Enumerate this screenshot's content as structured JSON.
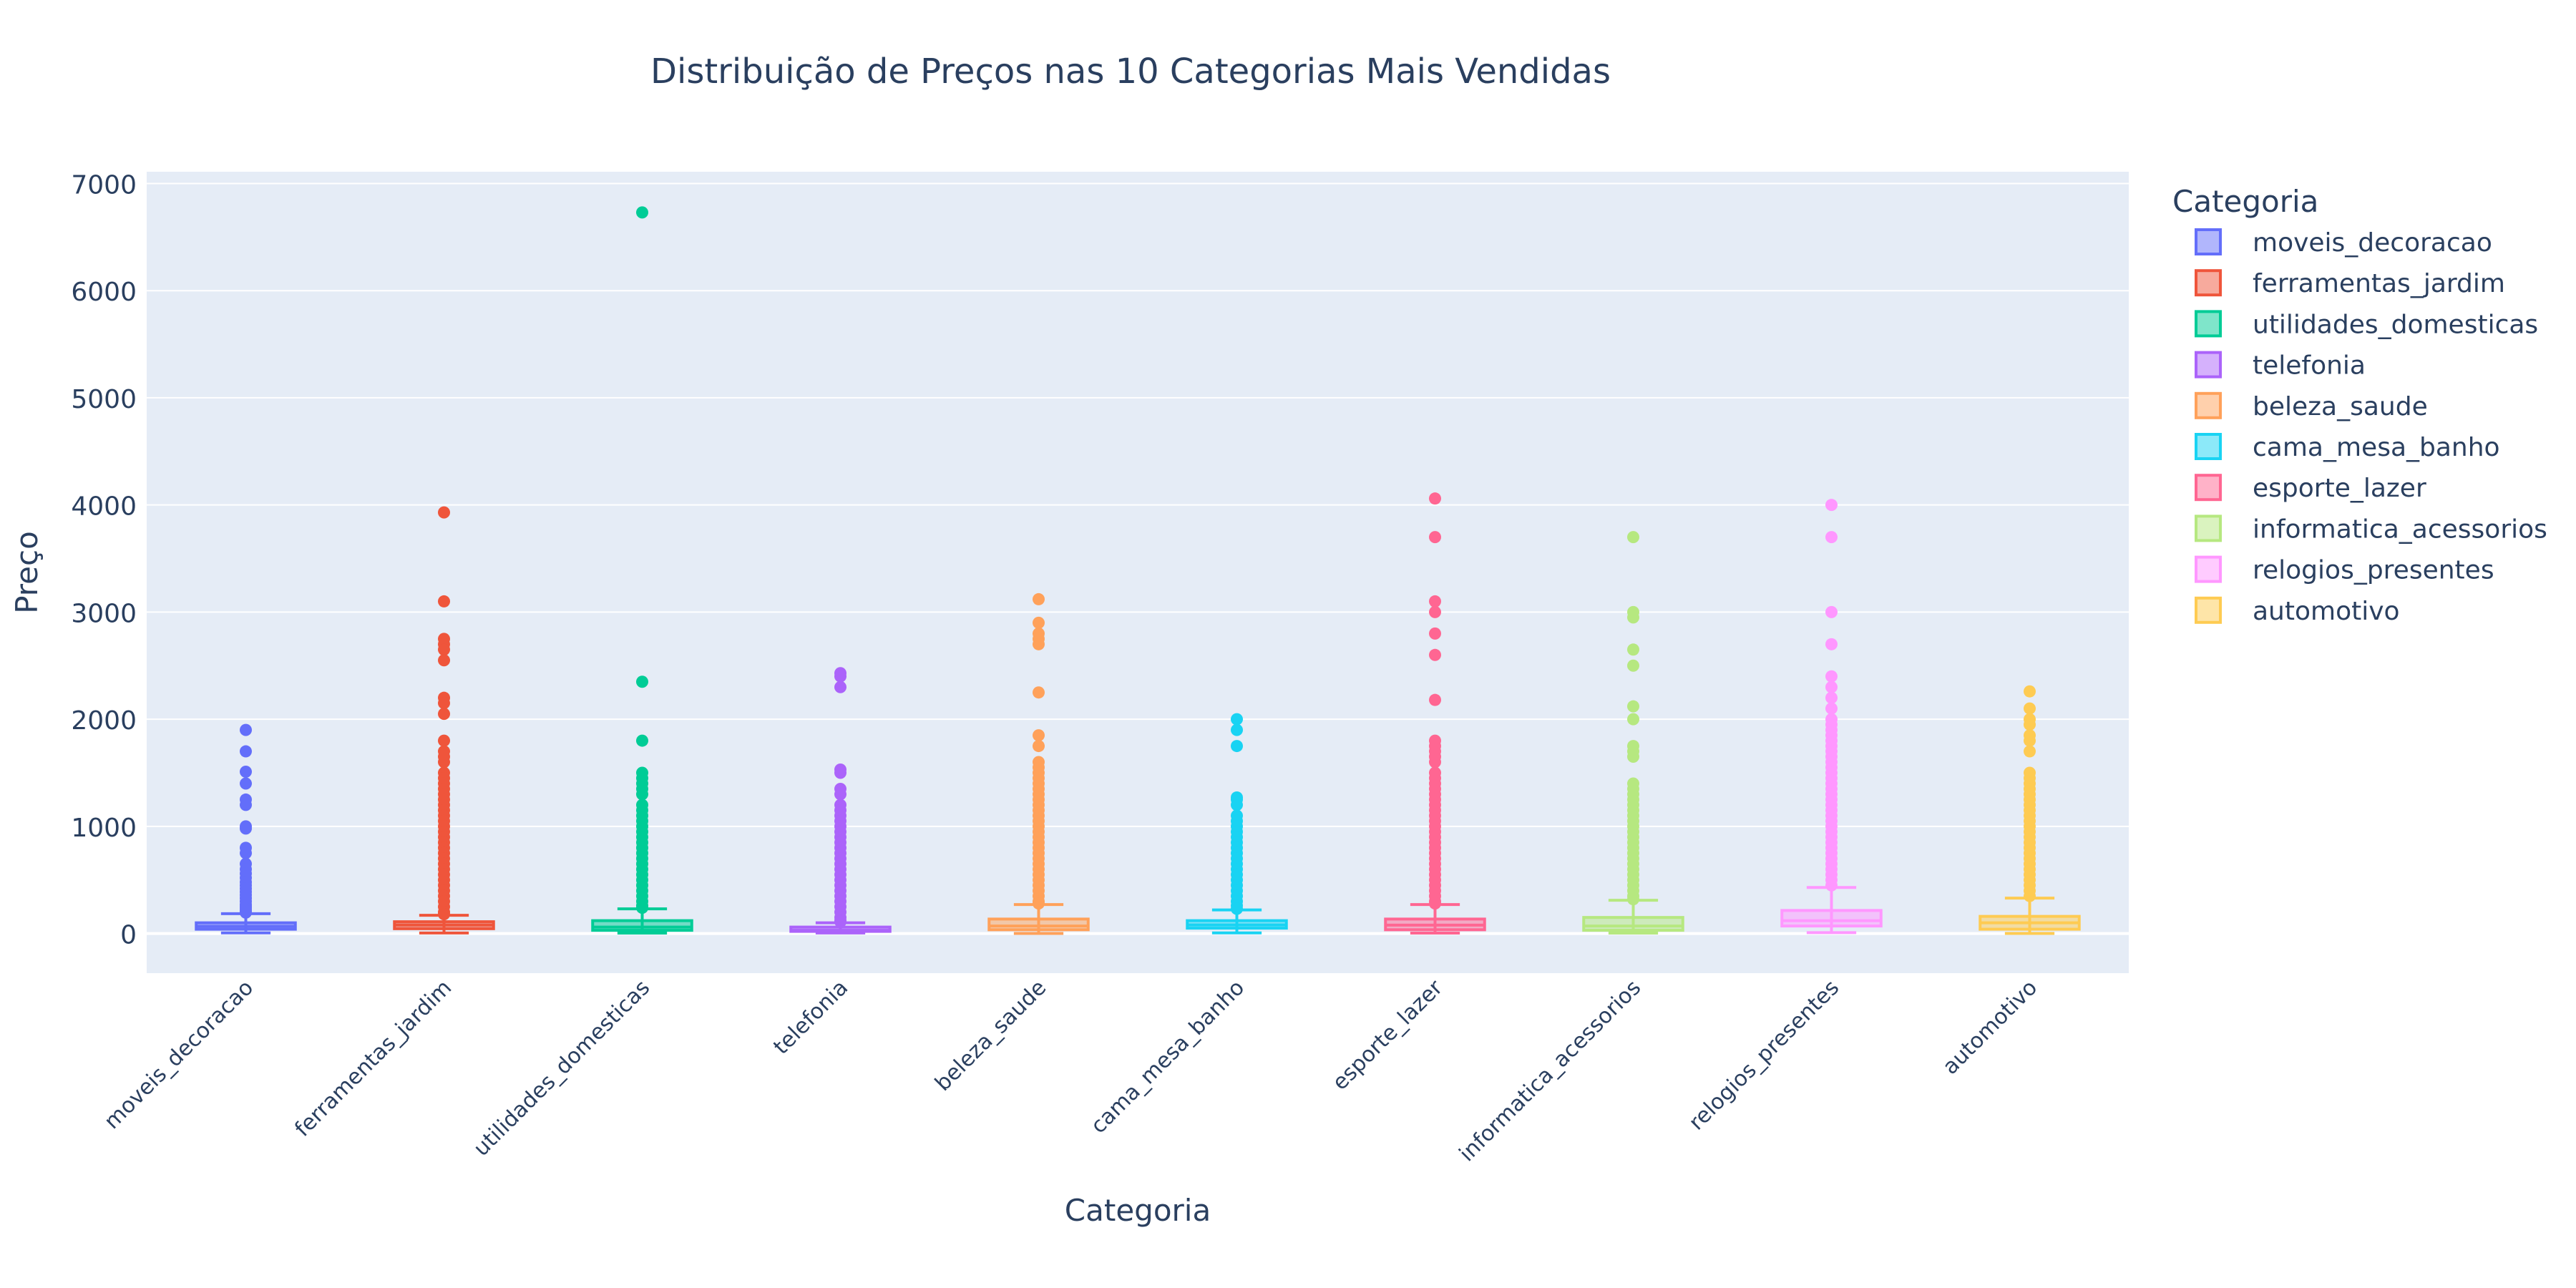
{
  "chart_data": {
    "type": "box",
    "title": "Distribuição de Preços nas 10 Categorias Mais Vendidas",
    "xlabel": "Categoria",
    "ylabel": "Preço",
    "ylim": [
      -370,
      7110
    ],
    "yticks": [
      0,
      1000,
      2000,
      3000,
      4000,
      5000,
      6000,
      7000
    ],
    "grid": true,
    "legend_title": "Categoria",
    "legend_position": "right",
    "categories": [
      "moveis_decoracao",
      "ferramentas_jardim",
      "utilidades_domesticas",
      "telefonia",
      "beleza_saude",
      "cama_mesa_banho",
      "esporte_lazer",
      "informatica_acessorios",
      "relogios_presentes",
      "automotivo"
    ],
    "series": [
      {
        "name": "moveis_decoracao",
        "color": "#636efa",
        "min": 6,
        "q1": 40,
        "median": 67,
        "q3": 100,
        "upper_fence": 185,
        "outliers": [
          1900,
          1700,
          1510,
          1400,
          1250,
          1200,
          1000,
          980,
          800,
          750,
          650,
          600,
          560,
          520,
          480,
          450,
          420,
          390,
          360,
          330,
          300,
          270,
          250,
          230,
          210,
          195
        ]
      },
      {
        "name": "ferramentas_jardim",
        "color": "#ef553b",
        "min": 5,
        "q1": 45,
        "median": 79,
        "q3": 110,
        "upper_fence": 170,
        "outliers": [
          3930,
          3100,
          2750,
          2700,
          2650,
          2550,
          2200,
          2150,
          2050,
          1800,
          1700,
          1650,
          1600,
          1500,
          1450,
          1400,
          1350,
          1300,
          1250,
          1200,
          1150,
          1100,
          1050,
          1000,
          950,
          900,
          850,
          800,
          750,
          700,
          650,
          600,
          550,
          500,
          450,
          400,
          350,
          300,
          250,
          200,
          180
        ]
      },
      {
        "name": "utilidades_domesticas",
        "color": "#00cc96",
        "min": 4,
        "q1": 30,
        "median": 60,
        "q3": 120,
        "upper_fence": 230,
        "outliers": [
          6730,
          2350,
          1800,
          1500,
          1450,
          1400,
          1350,
          1300,
          1200,
          1150,
          1100,
          1050,
          1000,
          950,
          900,
          850,
          800,
          750,
          700,
          650,
          600,
          550,
          500,
          450,
          400,
          350,
          300,
          260,
          240
        ]
      },
      {
        "name": "telefonia",
        "color": "#ab63fa",
        "min": 5,
        "q1": 20,
        "median": 30,
        "q3": 60,
        "upper_fence": 100,
        "outliers": [
          2430,
          2400,
          2300,
          1530,
          1500,
          1350,
          1300,
          1200,
          1150,
          1100,
          1050,
          1000,
          950,
          900,
          850,
          800,
          750,
          700,
          650,
          600,
          550,
          500,
          450,
          400,
          350,
          300,
          250,
          200,
          150,
          120,
          110
        ]
      },
      {
        "name": "beleza_saude",
        "color": "#ffa15a",
        "min": 1,
        "q1": 35,
        "median": 70,
        "q3": 135,
        "upper_fence": 270,
        "outliers": [
          3120,
          2900,
          2800,
          2750,
          2700,
          2250,
          1850,
          1750,
          1600,
          1550,
          1500,
          1450,
          1400,
          1350,
          1300,
          1250,
          1200,
          1150,
          1100,
          1050,
          1000,
          950,
          900,
          850,
          800,
          750,
          700,
          650,
          600,
          550,
          500,
          450,
          400,
          350,
          300,
          280
        ]
      },
      {
        "name": "cama_mesa_banho",
        "color": "#19d3f3",
        "min": 6,
        "q1": 50,
        "median": 80,
        "q3": 120,
        "upper_fence": 220,
        "outliers": [
          2000,
          1900,
          1750,
          1270,
          1250,
          1200,
          1100,
          1050,
          1000,
          950,
          900,
          850,
          800,
          750,
          700,
          650,
          600,
          550,
          500,
          450,
          400,
          350,
          300,
          260,
          230
        ]
      },
      {
        "name": "esporte_lazer",
        "color": "#ff6692",
        "min": 4,
        "q1": 35,
        "median": 78,
        "q3": 135,
        "upper_fence": 270,
        "outliers": [
          4060,
          3700,
          3100,
          3000,
          2800,
          2600,
          2180,
          1800,
          1750,
          1700,
          1650,
          1600,
          1500,
          1450,
          1400,
          1350,
          1300,
          1250,
          1200,
          1150,
          1100,
          1050,
          1000,
          950,
          900,
          850,
          800,
          750,
          700,
          650,
          600,
          550,
          500,
          450,
          400,
          350,
          300,
          280
        ]
      },
      {
        "name": "informatica_acessorios",
        "color": "#b6e880",
        "min": 4,
        "q1": 30,
        "median": 70,
        "q3": 150,
        "upper_fence": 310,
        "outliers": [
          3700,
          3000,
          2950,
          2650,
          2500,
          2120,
          2000,
          1750,
          1700,
          1650,
          1400,
          1350,
          1300,
          1250,
          1200,
          1150,
          1100,
          1050,
          1000,
          950,
          900,
          850,
          800,
          750,
          700,
          650,
          600,
          550,
          500,
          450,
          400,
          350,
          320
        ]
      },
      {
        "name": "relogios_presentes",
        "color": "#ff97ff",
        "min": 8,
        "q1": 70,
        "median": 120,
        "q3": 215,
        "upper_fence": 430,
        "outliers": [
          4000,
          3700,
          3000,
          2700,
          2400,
          2300,
          2200,
          2100,
          2000,
          1950,
          1900,
          1850,
          1800,
          1750,
          1700,
          1650,
          1600,
          1550,
          1500,
          1450,
          1400,
          1350,
          1300,
          1250,
          1200,
          1150,
          1100,
          1050,
          1000,
          950,
          900,
          850,
          800,
          750,
          700,
          650,
          600,
          550,
          500,
          450
        ]
      },
      {
        "name": "automotivo",
        "color": "#fecb52",
        "min": 1,
        "q1": 40,
        "median": 100,
        "q3": 160,
        "upper_fence": 330,
        "outliers": [
          2260,
          2100,
          2000,
          1950,
          1850,
          1800,
          1700,
          1500,
          1450,
          1400,
          1350,
          1300,
          1250,
          1200,
          1150,
          1100,
          1050,
          1000,
          950,
          900,
          850,
          800,
          750,
          700,
          650,
          600,
          550,
          500,
          450,
          400,
          350
        ]
      }
    ]
  }
}
